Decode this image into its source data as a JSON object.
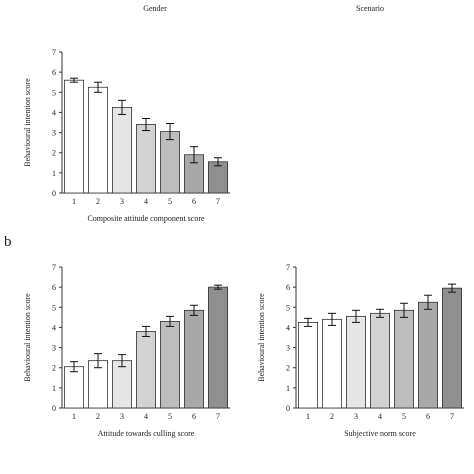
{
  "header": {
    "left": "Gender",
    "right": "Scenario"
  },
  "panel_b_label": "b",
  "colors": {
    "axis": "#333333",
    "bar_edge": "#333333",
    "bars": [
      "#ffffff",
      "#ffffff",
      "#e6e6e6",
      "#d2d2d2",
      "#bdbdbd",
      "#a8a8a8",
      "#8f8f8f"
    ]
  },
  "chart_data": [
    {
      "type": "bar",
      "title": "",
      "xlabel": "Composite attitude component score",
      "ylabel": "Behavioural intention score",
      "categories": [
        "1",
        "2",
        "3",
        "4",
        "5",
        "6",
        "7"
      ],
      "values": [
        5.6,
        5.25,
        4.25,
        3.4,
        3.05,
        1.9,
        1.55
      ],
      "errors": [
        0.1,
        0.25,
        0.35,
        0.3,
        0.4,
        0.4,
        0.2
      ],
      "ylim": [
        0,
        7
      ],
      "yticks": [
        "0",
        "1",
        "2",
        "3",
        "4",
        "5",
        "6",
        "7"
      ],
      "grid": false
    },
    {
      "type": "bar",
      "title": "",
      "xlabel": "Attitude towards culling score",
      "ylabel": "Behavioural intention score",
      "categories": [
        "1",
        "2",
        "3",
        "4",
        "5",
        "6",
        "7"
      ],
      "values": [
        2.05,
        2.35,
        2.35,
        3.8,
        4.3,
        4.85,
        6.0
      ],
      "errors": [
        0.25,
        0.35,
        0.3,
        0.25,
        0.25,
        0.25,
        0.1
      ],
      "ylim": [
        0,
        7
      ],
      "yticks": [
        "0",
        "1",
        "2",
        "3",
        "4",
        "5",
        "6",
        "7"
      ],
      "grid": false
    },
    {
      "type": "bar",
      "title": "",
      "xlabel": "Subjective norm score",
      "ylabel": "Behavioural intention score",
      "categories": [
        "1",
        "2",
        "3",
        "4",
        "5",
        "6",
        "7"
      ],
      "values": [
        4.25,
        4.4,
        4.55,
        4.7,
        4.85,
        5.25,
        5.95
      ],
      "errors": [
        0.2,
        0.3,
        0.3,
        0.2,
        0.35,
        0.35,
        0.2
      ],
      "ylim": [
        0,
        7
      ],
      "yticks": [
        "0",
        "1",
        "2",
        "3",
        "4",
        "5",
        "6",
        "7"
      ],
      "grid": false
    }
  ]
}
